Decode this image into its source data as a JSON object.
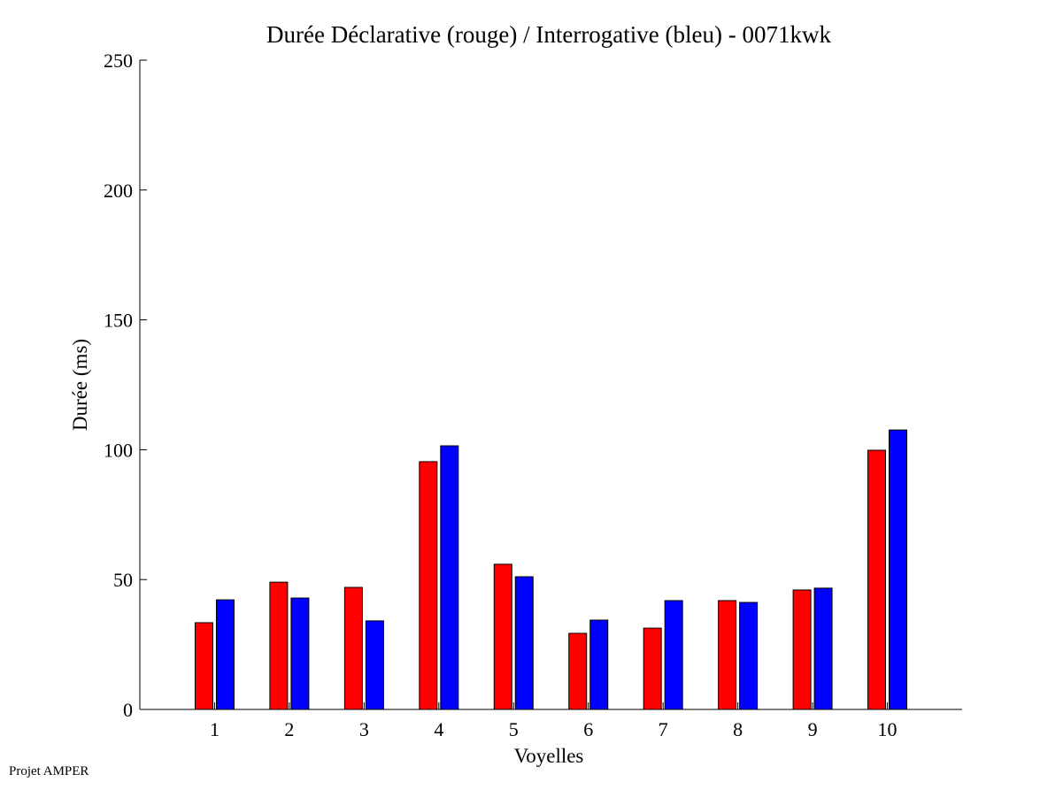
{
  "chart_data": {
    "type": "bar",
    "title": "Durée Déclarative (rouge) / Interrogative (bleu) - 0071kwk",
    "xlabel": "Voyelles",
    "ylabel": "Durée (ms)",
    "categories": [
      "1",
      "2",
      "3",
      "4",
      "5",
      "6",
      "7",
      "8",
      "9",
      "10"
    ],
    "xlim": [
      0,
      11
    ],
    "ylim": [
      0,
      250
    ],
    "yticks": [
      0,
      50,
      100,
      150,
      200,
      250
    ],
    "grid": false,
    "series": [
      {
        "name": "Déclarative (rouge)",
        "color": "#ff0000",
        "values": [
          33.4,
          49.0,
          47.0,
          95.4,
          55.9,
          29.3,
          31.3,
          41.9,
          46.0,
          99.8
        ]
      },
      {
        "name": "Interrogative (bleu)",
        "color": "#0000ff",
        "values": [
          42.2,
          42.9,
          34.1,
          101.5,
          51.1,
          34.4,
          41.9,
          41.2,
          46.7,
          107.6
        ]
      }
    ]
  },
  "footer": "Projet AMPER"
}
